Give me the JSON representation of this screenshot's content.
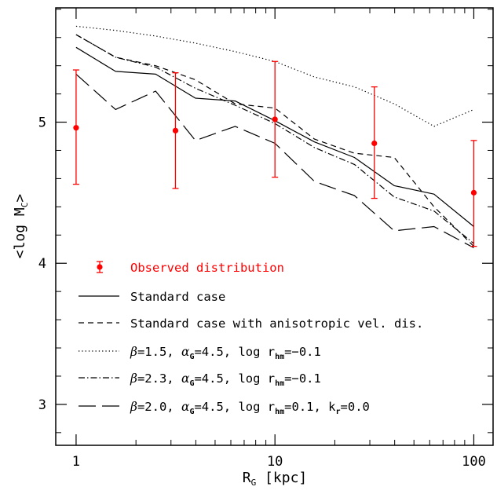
{
  "chart_data": {
    "type": "line",
    "xlabel": {
      "main": "R",
      "sub": "G",
      "unit": " [kpc]"
    },
    "ylabel": {
      "open": "<log M",
      "sub": "C",
      "close": ">"
    },
    "x_scale": "log",
    "xlim": [
      0.79,
      125
    ],
    "ylim": [
      2.71,
      5.81
    ],
    "x_ticks": [
      {
        "value": 1,
        "label": "1"
      },
      {
        "value": 10,
        "label": "10"
      },
      {
        "value": 100,
        "label": "100"
      }
    ],
    "y_ticks": [
      {
        "value": 3,
        "label": "3"
      },
      {
        "value": 4,
        "label": "4"
      },
      {
        "value": 5,
        "label": "5"
      }
    ],
    "x_minor_ticks": [
      2,
      3,
      4,
      5,
      6,
      7,
      8,
      9,
      20,
      30,
      40,
      50,
      60,
      70,
      80,
      90
    ],
    "y_minor_step": 0.2,
    "grid": false,
    "legend_position": "bottom-left",
    "observed": {
      "color": "#ff0000",
      "x": [
        1,
        3.16,
        10,
        31.6,
        100
      ],
      "y": [
        4.96,
        4.94,
        5.02,
        4.85,
        4.5
      ],
      "err_low": [
        4.56,
        4.53,
        4.61,
        4.46,
        4.12
      ],
      "err_high": [
        5.37,
        5.35,
        5.43,
        5.25,
        4.87
      ]
    },
    "series": [
      {
        "style": "solid",
        "x": [
          1,
          1.58,
          2.51,
          3.98,
          6.31,
          10,
          15.8,
          25.1,
          39.8,
          63.1,
          100
        ],
        "y": [
          5.53,
          5.36,
          5.34,
          5.17,
          5.15,
          5.01,
          4.86,
          4.75,
          4.55,
          4.49,
          4.26
        ]
      },
      {
        "style": "dashed",
        "x": [
          1,
          1.58,
          2.51,
          3.98,
          6.31,
          10,
          15.8,
          25.1,
          39.8,
          63.1,
          100
        ],
        "y": [
          5.62,
          5.46,
          5.4,
          5.3,
          5.13,
          5.1,
          4.88,
          4.78,
          4.75,
          4.4,
          4.12
        ]
      },
      {
        "style": "dotted",
        "x": [
          1,
          1.58,
          2.51,
          3.98,
          6.31,
          10,
          15.8,
          25.1,
          39.8,
          63.1,
          100
        ],
        "y": [
          5.68,
          5.65,
          5.61,
          5.56,
          5.5,
          5.43,
          5.32,
          5.25,
          5.13,
          4.97,
          5.09
        ]
      },
      {
        "style": "dashdot",
        "x": [
          1,
          1.58,
          2.51,
          3.98,
          6.31,
          10,
          15.8,
          25.1,
          39.8,
          63.1,
          100
        ],
        "y": [
          5.62,
          5.46,
          5.39,
          5.24,
          5.12,
          4.99,
          4.82,
          4.7,
          4.47,
          4.37,
          4.14
        ]
      },
      {
        "style": "longdash",
        "x": [
          1,
          1.58,
          2.51,
          3.98,
          6.31,
          10,
          15.8,
          25.1,
          39.8,
          63.1,
          100
        ],
        "y": [
          5.34,
          5.09,
          5.22,
          4.87,
          4.97,
          4.85,
          4.58,
          4.48,
          4.23,
          4.26,
          4.11
        ]
      }
    ],
    "legend": [
      {
        "kind": "marker",
        "color": "#ff0000",
        "parts": [
          {
            "t": "Observed distribution"
          }
        ]
      },
      {
        "kind": "line",
        "style": "solid",
        "parts": [
          {
            "t": "Standard case"
          }
        ]
      },
      {
        "kind": "line",
        "style": "dashed",
        "parts": [
          {
            "t": "Standard case with anisotropic vel. dis."
          }
        ]
      },
      {
        "kind": "line",
        "style": "dotted",
        "parts": [
          {
            "t": "β",
            "i": true
          },
          {
            "t": "=1.5, "
          },
          {
            "t": "α",
            "i": true
          },
          {
            "t": "G",
            "s": true
          },
          {
            "t": "=4.5, log r"
          },
          {
            "t": "hm",
            "s": true
          },
          {
            "t": "=−0.1"
          }
        ]
      },
      {
        "kind": "line",
        "style": "dashdot",
        "parts": [
          {
            "t": "β",
            "i": true
          },
          {
            "t": "=2.3, "
          },
          {
            "t": "α",
            "i": true
          },
          {
            "t": "G",
            "s": true
          },
          {
            "t": "=4.5, log r"
          },
          {
            "t": "hm",
            "s": true
          },
          {
            "t": "=−0.1"
          }
        ]
      },
      {
        "kind": "line",
        "style": "longdash",
        "parts": [
          {
            "t": "β",
            "i": true
          },
          {
            "t": "=2.0, "
          },
          {
            "t": "α",
            "i": true
          },
          {
            "t": "G",
            "s": true
          },
          {
            "t": "=4.5, log r"
          },
          {
            "t": "hm",
            "s": true
          },
          {
            "t": "=0.1, k"
          },
          {
            "t": "r",
            "s": true
          },
          {
            "t": "=0.0"
          }
        ]
      }
    ]
  }
}
